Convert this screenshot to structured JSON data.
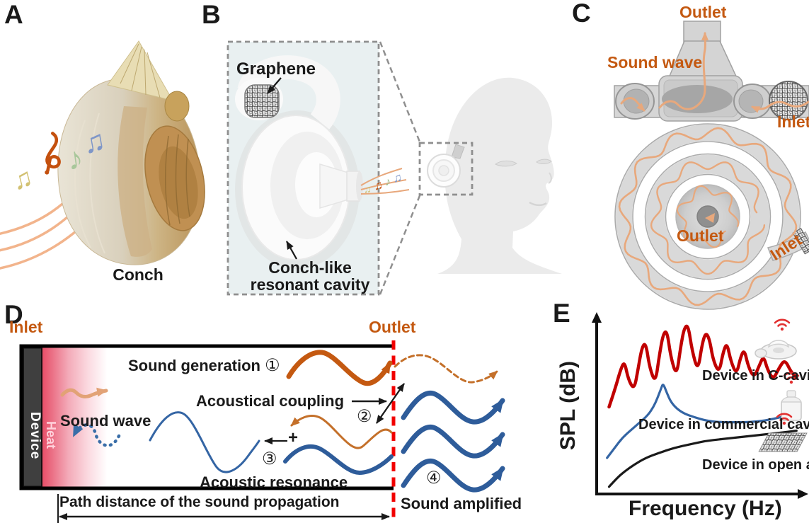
{
  "panels": {
    "a": {
      "label": "A",
      "caption": "Conch"
    },
    "b": {
      "label": "B",
      "graphene": "Graphene",
      "cavity_line1": "Conch-like",
      "cavity_line2": "resonant cavity"
    },
    "c": {
      "label": "C",
      "top": {
        "outlet": "Outlet",
        "sound_wave": "Sound wave",
        "inlet": "Inlet"
      },
      "spiral": {
        "outlet": "Outlet",
        "inlet": "Inlet"
      }
    },
    "d": {
      "label": "D",
      "inlet": "Inlet",
      "outlet": "Outlet",
      "device": "Device",
      "heat": "Heat",
      "sound_wave": "Sound wave",
      "step1_label": "Sound generation",
      "step1_num": "①",
      "step2_label": "Acoustical coupling",
      "step2_num": "②",
      "step3_num": "③",
      "step3_label": "Acoustic resonance",
      "plus": "+",
      "step4_num": "④",
      "step4_label": "Sound amplified",
      "path_distance": "Path distance of the sound propagation"
    },
    "e": {
      "label": "E",
      "ylabel": "SPL (dB)",
      "xlabel": "Frequency (Hz)"
    }
  },
  "icons": {
    "music_note_beamed": "♫",
    "music_note_single": "♪",
    "treble_clef": "treble-clef-icon",
    "wifi": "wifi-icon",
    "graphene_mesh": "graphene-mesh-icon",
    "c_cavity_device": "c-cavity-device-icon",
    "commercial_cavity_device": "commercial-cavity-device-icon",
    "graphene_sheet": "graphene-sheet-icon"
  },
  "colors": {
    "accent_orange": "#c45911",
    "light_wave_orange": "#e8a87c",
    "thick_wave_blue": "#2e5c9a",
    "thin_wave_blue": "#3465a4",
    "red_dashed_line": "#f10000",
    "heat_red": "#e84a64",
    "device_gray": "#3f3f3f",
    "red_curve": "#c00000",
    "black_curve": "#1a1a1a"
  },
  "chart_data": {
    "type": "line",
    "title": "",
    "xlabel": "Frequency (Hz)",
    "ylabel": "SPL (dB)",
    "xlim": [
      0,
      100
    ],
    "ylim": [
      0,
      100
    ],
    "ticks": "none (qualitative sketch)",
    "grid": false,
    "legend_position": "right of each curve",
    "series": [
      {
        "name": "Device in C-cavity",
        "color": "#c00000",
        "points": [
          [
            2,
            50
          ],
          [
            5,
            60
          ],
          [
            8,
            72
          ],
          [
            10,
            77
          ],
          [
            12,
            66
          ],
          [
            15,
            60
          ],
          [
            17,
            72
          ],
          [
            19,
            85
          ],
          [
            21,
            88
          ],
          [
            23,
            73
          ],
          [
            26,
            64
          ],
          [
            28,
            80
          ],
          [
            30,
            93
          ],
          [
            32,
            95
          ],
          [
            34,
            79
          ],
          [
            37,
            68
          ],
          [
            39,
            85
          ],
          [
            41,
            97
          ],
          [
            43,
            98
          ],
          [
            45,
            83
          ],
          [
            48,
            71
          ],
          [
            50,
            86
          ],
          [
            52,
            94
          ],
          [
            54,
            90
          ],
          [
            56,
            77
          ],
          [
            59,
            70
          ],
          [
            61,
            82
          ],
          [
            63,
            88
          ],
          [
            65,
            77
          ],
          [
            68,
            69
          ],
          [
            70,
            79
          ],
          [
            72,
            84
          ],
          [
            74,
            74
          ],
          [
            77,
            67
          ],
          [
            80,
            75
          ],
          [
            82,
            80
          ],
          [
            84,
            72
          ],
          [
            87,
            66
          ],
          [
            90,
            73
          ],
          [
            93,
            78
          ],
          [
            96,
            71
          ],
          [
            99,
            67
          ]
        ]
      },
      {
        "name": "Device in commercial cavity",
        "color": "#3465a4",
        "points": [
          [
            1,
            20
          ],
          [
            5,
            26
          ],
          [
            9,
            32
          ],
          [
            14,
            37
          ],
          [
            18,
            41
          ],
          [
            22,
            45
          ],
          [
            25,
            50
          ],
          [
            27,
            55
          ],
          [
            29,
            61
          ],
          [
            30,
            64
          ],
          [
            32,
            58
          ],
          [
            34,
            53
          ],
          [
            37,
            49
          ],
          [
            41,
            46
          ],
          [
            46,
            44
          ],
          [
            52,
            42
          ],
          [
            59,
            41
          ],
          [
            67,
            41
          ],
          [
            75,
            41
          ],
          [
            83,
            42
          ],
          [
            91,
            44
          ],
          [
            99,
            46
          ]
        ]
      },
      {
        "name": "Device in open air",
        "color": "#1a1a1a",
        "points": [
          [
            2,
            3
          ],
          [
            6,
            8
          ],
          [
            10,
            12
          ],
          [
            15,
            16
          ],
          [
            21,
            20
          ],
          [
            28,
            23
          ],
          [
            36,
            26
          ],
          [
            44,
            28
          ],
          [
            52,
            30
          ],
          [
            60,
            31
          ],
          [
            68,
            32
          ],
          [
            76,
            33
          ],
          [
            84,
            34
          ],
          [
            92,
            35
          ],
          [
            99,
            36
          ]
        ]
      }
    ]
  }
}
